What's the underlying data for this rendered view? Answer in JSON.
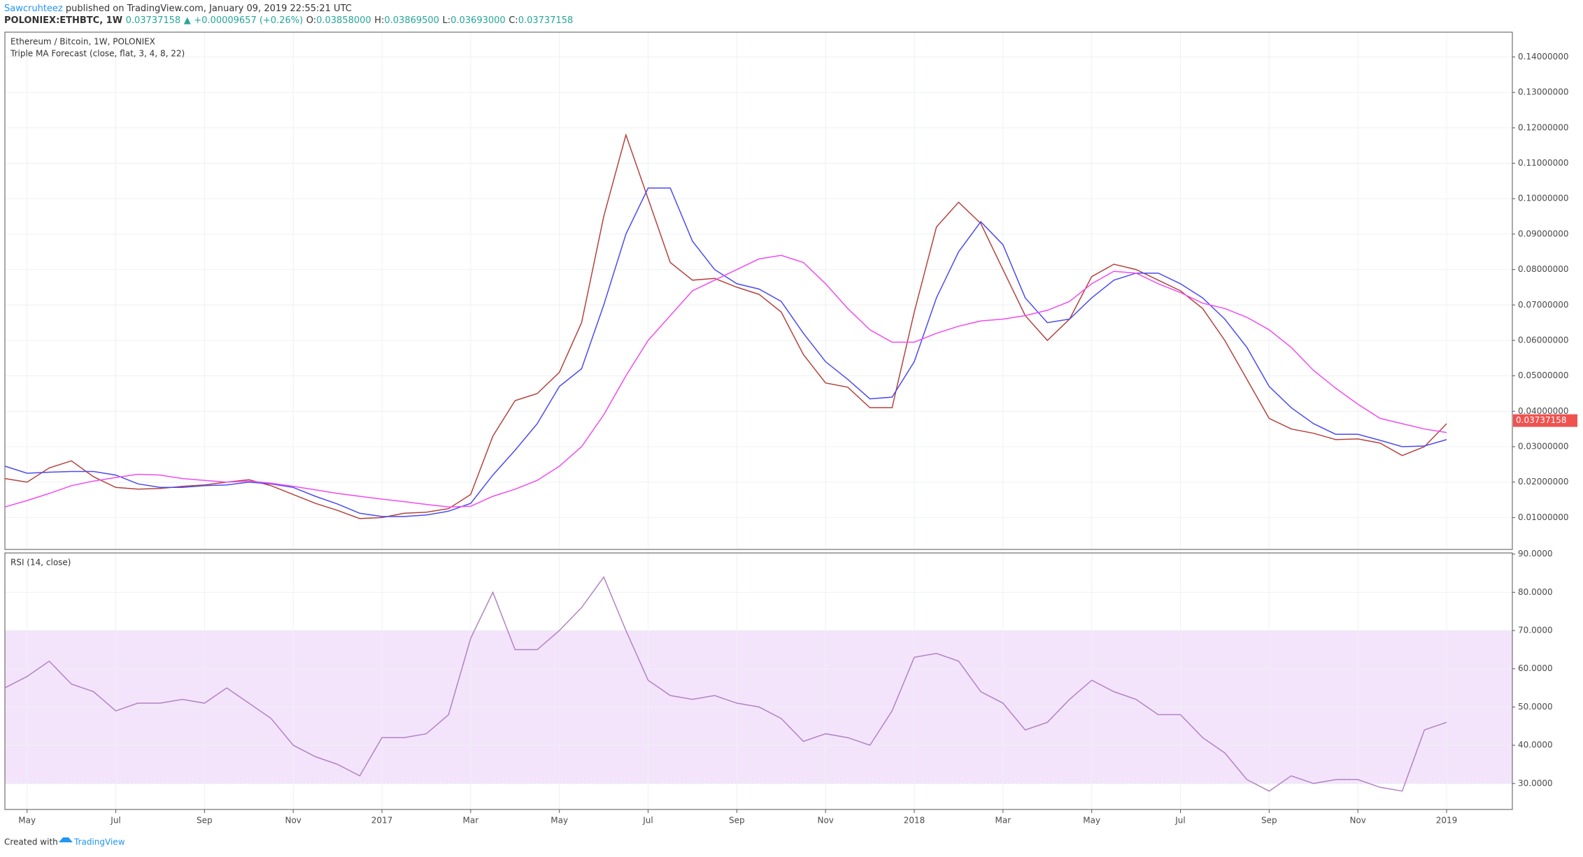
{
  "header": {
    "author": "Sawcruhteez",
    "published": "published on TradingView.com, January 09, 2019 22:55:21 UTC",
    "symbol": "POLONIEX:ETHBTC, 1W",
    "price": "0.03737158",
    "arrow": "▲",
    "change": "+0.00009657 (+0.26%)",
    "open_label": "O:",
    "open": "0.03858000",
    "high_label": "H:",
    "high": "0.03869500",
    "low_label": "L:",
    "low": "0.03693000",
    "close_label": "C:",
    "close": "0.03737158"
  },
  "footer": {
    "created": "Created with",
    "brand": "TradingView"
  },
  "chart_data": [
    {
      "type": "line",
      "title": "Ethereum / Bitcoin, 1W, POLONIEX",
      "subtitle": "Triple MA Forecast (close, flat, 3, 4, 8, 22)",
      "ylim": [
        0.001,
        0.147
      ],
      "yticks": [
        {
          "value": 0.01,
          "label": "0.01000000"
        },
        {
          "value": 0.02,
          "label": "0.02000000"
        },
        {
          "value": 0.03,
          "label": "0.03000000"
        },
        {
          "value": 0.04,
          "label": "0.04000000"
        },
        {
          "value": 0.05,
          "label": "0.05000000"
        },
        {
          "value": 0.06,
          "label": "0.06000000"
        },
        {
          "value": 0.07,
          "label": "0.07000000"
        },
        {
          "value": 0.08,
          "label": "0.08000000"
        },
        {
          "value": 0.09,
          "label": "0.09000000"
        },
        {
          "value": 0.1,
          "label": "0.10000000"
        },
        {
          "value": 0.11,
          "label": "0.11000000"
        },
        {
          "value": 0.12,
          "label": "0.12000000"
        },
        {
          "value": 0.13,
          "label": "0.13000000"
        },
        {
          "value": 0.14,
          "label": "0.14000000"
        }
      ],
      "grid": true,
      "last_price": 0.03737158,
      "last_price_color": "#ef5350",
      "series": [
        {
          "color": "#b5433d",
          "values": [
            0.021,
            0.02,
            0.024,
            0.026,
            0.0215,
            0.0185,
            0.018,
            0.0182,
            0.0188,
            0.0192,
            0.02,
            0.0207,
            0.019,
            0.0165,
            0.014,
            0.012,
            0.0097,
            0.01,
            0.0112,
            0.0115,
            0.0125,
            0.0165,
            0.033,
            0.043,
            0.045,
            0.051,
            0.065,
            0.095,
            0.118,
            0.1,
            0.082,
            0.077,
            0.0775,
            0.075,
            0.073,
            0.068,
            0.056,
            0.048,
            0.0468,
            0.041,
            0.041,
            0.068,
            0.092,
            0.099,
            0.093,
            0.08,
            0.067,
            0.06,
            0.066,
            0.078,
            0.0815,
            0.08,
            0.077,
            0.074,
            0.069,
            0.06,
            0.049,
            0.038,
            0.035,
            0.0338,
            0.032,
            0.0322,
            0.031,
            0.0275,
            0.03,
            0.0365
          ]
        },
        {
          "color": "#4b4bf0",
          "values": [
            0.0245,
            0.0225,
            0.0228,
            0.023,
            0.023,
            0.022,
            0.0195,
            0.0185,
            0.0185,
            0.019,
            0.0192,
            0.02,
            0.0195,
            0.0185,
            0.016,
            0.0138,
            0.0112,
            0.0103,
            0.0103,
            0.0107,
            0.0118,
            0.014,
            0.022,
            0.029,
            0.0365,
            0.047,
            0.052,
            0.07,
            0.09,
            0.103,
            0.103,
            0.088,
            0.08,
            0.076,
            0.0745,
            0.071,
            0.062,
            0.054,
            0.049,
            0.0435,
            0.044,
            0.054,
            0.072,
            0.085,
            0.0935,
            0.087,
            0.072,
            0.065,
            0.066,
            0.072,
            0.077,
            0.079,
            0.079,
            0.076,
            0.072,
            0.066,
            0.058,
            0.047,
            0.041,
            0.0365,
            0.0335,
            0.0335,
            0.0318,
            0.03,
            0.0302,
            0.032
          ]
        },
        {
          "color": "#f04cf0",
          "values": [
            0.013,
            0.0148,
            0.0168,
            0.019,
            0.0203,
            0.0213,
            0.0222,
            0.022,
            0.021,
            0.0205,
            0.02,
            0.0203,
            0.0197,
            0.0188,
            0.0178,
            0.0168,
            0.016,
            0.0152,
            0.0145,
            0.0137,
            0.013,
            0.0132,
            0.016,
            0.018,
            0.0205,
            0.0245,
            0.03,
            0.039,
            0.05,
            0.06,
            0.067,
            0.074,
            0.077,
            0.08,
            0.083,
            0.084,
            0.082,
            0.076,
            0.069,
            0.063,
            0.0595,
            0.0595,
            0.062,
            0.064,
            0.0655,
            0.066,
            0.067,
            0.0685,
            0.071,
            0.076,
            0.0795,
            0.079,
            0.076,
            0.0735,
            0.0705,
            0.069,
            0.0665,
            0.063,
            0.058,
            0.0515,
            0.0465,
            0.042,
            0.038,
            0.0365,
            0.035,
            0.034
          ]
        }
      ]
    },
    {
      "type": "line",
      "title": "RSI (14, close)",
      "categories": [
        null,
        "May",
        null,
        null,
        null,
        "Jul",
        null,
        null,
        null,
        "Sep",
        null,
        null,
        null,
        "Nov",
        null,
        null,
        null,
        "2017",
        null,
        null,
        null,
        "Mar",
        null,
        null,
        null,
        "May",
        null,
        null,
        null,
        "Jul",
        null,
        null,
        null,
        "Sep",
        null,
        null,
        null,
        "Nov",
        null,
        null,
        null,
        "2018",
        null,
        null,
        null,
        "Mar",
        null,
        null,
        null,
        "May",
        null,
        null,
        null,
        "Jul",
        null,
        null,
        null,
        "Sep",
        null,
        null,
        null,
        "Nov",
        null,
        null,
        null,
        "2019"
      ],
      "ylim": [
        23.2,
        90.3
      ],
      "yticks": [
        {
          "value": 30,
          "label": "30.0000"
        },
        {
          "value": 40,
          "label": "40.0000"
        },
        {
          "value": 50,
          "label": "50.0000"
        },
        {
          "value": 60,
          "label": "60.0000"
        },
        {
          "value": 70,
          "label": "70.0000"
        },
        {
          "value": 80,
          "label": "80.0000"
        },
        {
          "value": 90,
          "label": "90.0000"
        }
      ],
      "band": [
        30,
        70
      ],
      "band_color": "#f3e4fc",
      "series": [
        {
          "color": "#b382c4",
          "values": [
            55,
            58,
            62,
            56,
            54,
            49,
            51,
            51,
            52,
            51,
            55,
            51,
            47,
            40,
            37,
            35,
            32,
            42,
            42,
            43,
            48,
            68,
            80,
            65,
            65,
            70,
            76,
            84,
            70,
            57,
            53,
            52,
            53,
            51,
            50,
            47,
            41,
            43,
            42,
            40,
            49,
            63,
            64,
            62,
            54,
            51,
            44,
            46,
            52,
            57,
            54,
            52,
            48,
            48,
            42,
            38,
            31,
            28,
            32,
            30,
            31,
            31,
            29,
            28,
            44,
            46
          ]
        }
      ]
    }
  ]
}
